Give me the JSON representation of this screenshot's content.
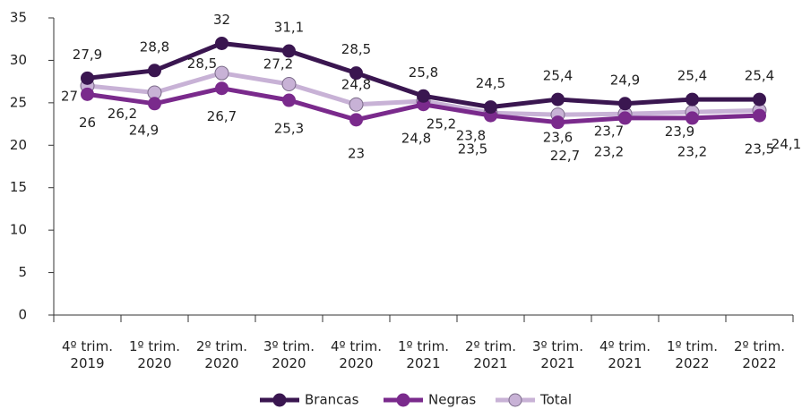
{
  "chart_data": {
    "type": "line",
    "categories": [
      "4º trim. 2019",
      "1º trim. 2020",
      "2º trim. 2020",
      "3º trim. 2020",
      "4º trim. 2020",
      "1º trim. 2021",
      "2º trim. 2021",
      "3º trim. 2021",
      "4º trim. 2021",
      "1º trim. 2022",
      "2º trim. 2022"
    ],
    "series": [
      {
        "name": "Brancas",
        "color": "#3a1650",
        "values": [
          27.9,
          28.8,
          32,
          31.1,
          28.5,
          25.8,
          24.5,
          25.4,
          24.9,
          25.4,
          25.4
        ],
        "value_labels": [
          "27,9",
          "28,8",
          "32",
          "31,1",
          "28,5",
          "25,8",
          "24,5",
          "25,4",
          "24,9",
          "25,4",
          "25,4"
        ]
      },
      {
        "name": "Negras",
        "color": "#7a2a8c",
        "values": [
          26,
          24.9,
          26.7,
          25.3,
          23,
          24.8,
          23.5,
          22.7,
          23.2,
          23.2,
          23.5
        ],
        "value_labels": [
          "26",
          "24,9",
          "26,7",
          "25,3",
          "23",
          "24,8",
          "23,5",
          "22,7",
          "23,2",
          "23,2",
          "23,5"
        ]
      },
      {
        "name": "Total",
        "color": "#c8b2d6",
        "values": [
          27,
          26.2,
          28.5,
          27.2,
          24.8,
          25.2,
          23.8,
          23.6,
          23.7,
          23.9,
          24.1
        ],
        "value_labels": [
          "27",
          "26,2",
          "28,5",
          "27,2",
          "24,8",
          "25,2",
          "23,8",
          "23,6",
          "23,7",
          "23,9",
          "24,1"
        ]
      }
    ],
    "ylim": [
      0,
      35
    ],
    "yticks": [
      0,
      5,
      10,
      15,
      20,
      25,
      30,
      35
    ],
    "grid": false,
    "legend": "bottom"
  }
}
